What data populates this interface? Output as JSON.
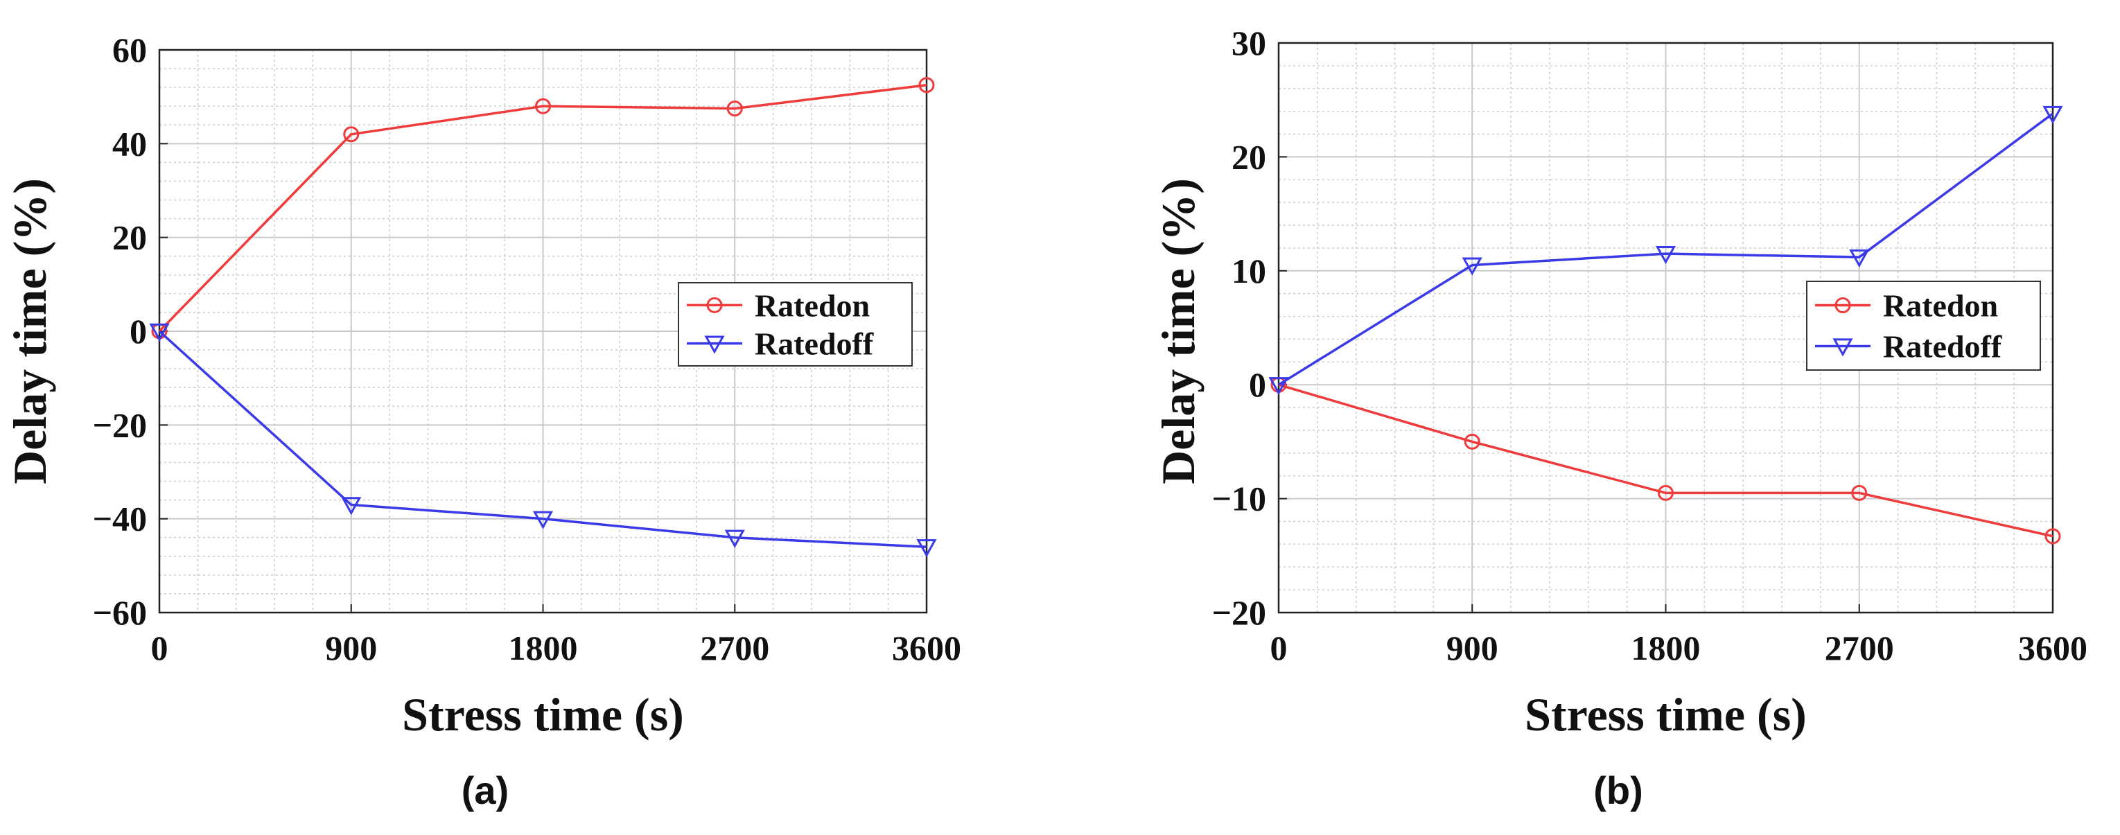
{
  "chart_data": [
    {
      "type": "line",
      "caption": "(a)",
      "xlabel": "Stress time (s)",
      "ylabel": "Delay  time (%)",
      "x": [
        0,
        900,
        1800,
        2700,
        3600
      ],
      "xlim": [
        0,
        3600
      ],
      "ylim": [
        -60,
        60
      ],
      "xticks": [
        0,
        900,
        1800,
        2700,
        3600
      ],
      "xtick_labels": [
        "0",
        "900",
        "1800",
        "2700",
        "3600"
      ],
      "yticks": [
        -60,
        -40,
        -20,
        0,
        20,
        40,
        60
      ],
      "ytick_labels": [
        "−60",
        "−40",
        "−20",
        "0",
        "20",
        "40",
        "60"
      ],
      "grid": true,
      "legend": "center-right",
      "series": [
        {
          "name": "Ratedon",
          "color": "#ef3b3b",
          "marker": "circle",
          "values": [
            0,
            42,
            48,
            47.5,
            52.5
          ]
        },
        {
          "name": "Ratedoff",
          "color": "#3a3ae8",
          "marker": "triangle-down",
          "values": [
            0,
            -37,
            -40,
            -44,
            -46
          ]
        }
      ]
    },
    {
      "type": "line",
      "caption": "(b)",
      "xlabel": "Stress time (s)",
      "ylabel": "Delay time (%)",
      "x": [
        0,
        900,
        1800,
        2700,
        3600
      ],
      "xlim": [
        0,
        3600
      ],
      "ylim": [
        -20,
        30
      ],
      "xticks": [
        0,
        900,
        1800,
        2700,
        3600
      ],
      "xtick_labels": [
        "0",
        "900",
        "1800",
        "2700",
        "3600"
      ],
      "yticks": [
        -20,
        -10,
        0,
        10,
        20,
        30
      ],
      "ytick_labels": [
        "−20",
        "−10",
        "0",
        "10",
        "20",
        "30"
      ],
      "grid": true,
      "legend": "center-right",
      "series": [
        {
          "name": "Ratedon",
          "color": "#ef3b3b",
          "marker": "circle",
          "values": [
            0,
            -5,
            -9.5,
            -9.5,
            -13.3
          ]
        },
        {
          "name": "Ratedoff",
          "color": "#3a3ae8",
          "marker": "triangle-down",
          "values": [
            0,
            10.5,
            11.5,
            11.2,
            23.8
          ]
        }
      ]
    }
  ]
}
